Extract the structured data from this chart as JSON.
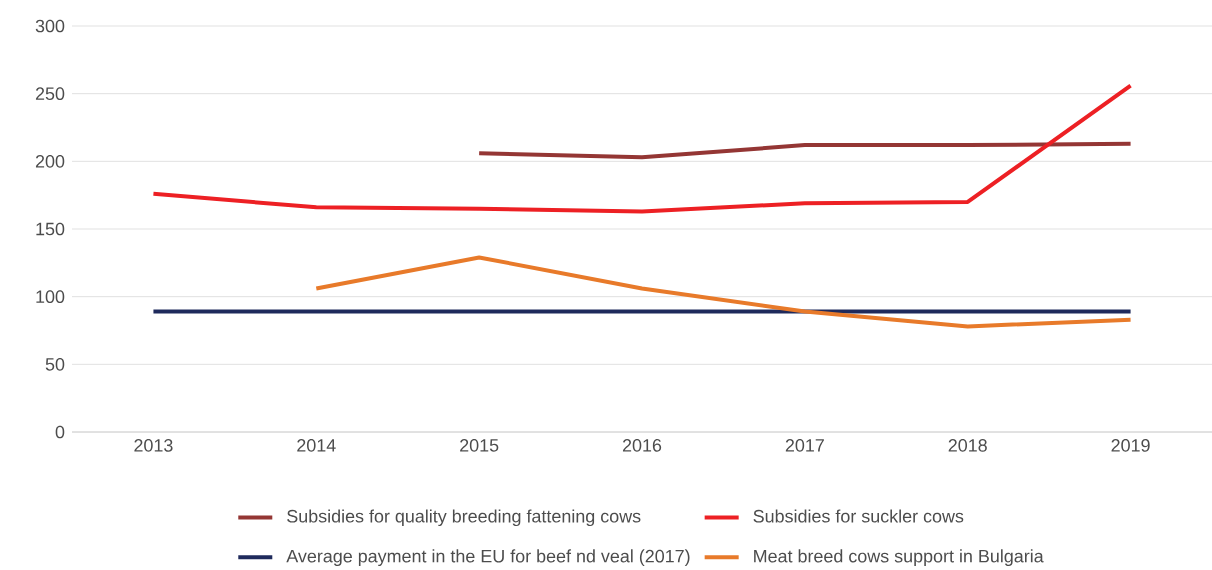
{
  "chart_data": {
    "type": "line",
    "categories": [
      "2013",
      "2014",
      "2015",
      "2016",
      "2017",
      "2018",
      "2019"
    ],
    "series": [
      {
        "name": "Subsidies for quality breeding fattening cows",
        "color": "#943634",
        "values": [
          null,
          null,
          206,
          203,
          212,
          212,
          213
        ]
      },
      {
        "name": "Subsidies for suckler cows",
        "color": "#ed2024",
        "values": [
          176,
          166,
          165,
          163,
          169,
          170,
          256
        ]
      },
      {
        "name": "Average payment in the EU for beef nd veal (2017)",
        "color": "#1f2a5c",
        "values": [
          89,
          89,
          89,
          89,
          89,
          89,
          89
        ]
      },
      {
        "name": "Meat breed cows support in Bulgaria",
        "color": "#e87a2a",
        "values": [
          null,
          106,
          129,
          106,
          89,
          78,
          83
        ]
      }
    ],
    "ylim": [
      0,
      300
    ],
    "yticks": [
      0,
      50,
      100,
      150,
      200,
      250,
      300
    ],
    "grid": "y",
    "legend": "bottom",
    "marker": "none",
    "line_style": "solid"
  }
}
